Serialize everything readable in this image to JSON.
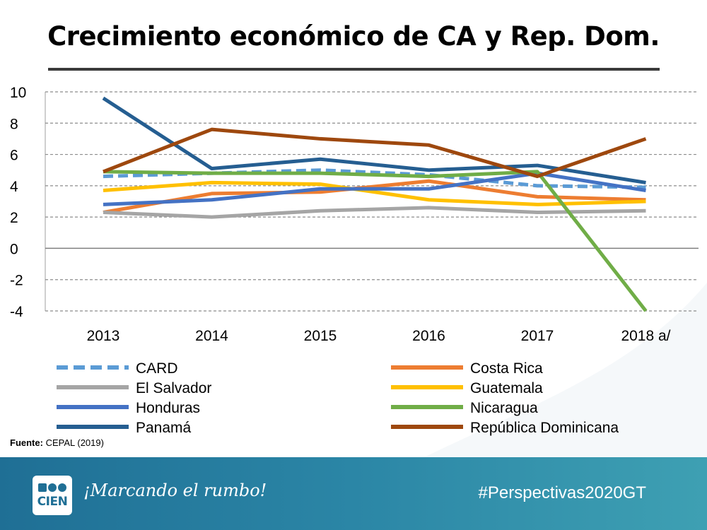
{
  "title": "Crecimiento económico de CA y Rep. Dom.",
  "source": {
    "label": "Fuente:",
    "text": "CEPAL (2019)"
  },
  "footer": {
    "logo_text": "CIEN",
    "slogan": "¡Marcando el rumbo!",
    "hashtag": "#Perspectivas2020GT"
  },
  "chart_data": {
    "type": "line",
    "title": "Crecimiento económico de CA y Rep. Dom.",
    "xlabel": "",
    "ylabel": "",
    "categories": [
      "2013",
      "2014",
      "2015",
      "2016",
      "2017",
      "2018 a/"
    ],
    "ylim": [
      -4,
      10
    ],
    "yticks": [
      "10",
      "8",
      "6",
      "4",
      "2",
      "0",
      "-2",
      "-4"
    ],
    "grid": true,
    "legend_position": "bottom",
    "series": [
      {
        "name": "CARD",
        "color": "#5b9bd5",
        "dashed": true,
        "values": [
          4.6,
          4.8,
          5.0,
          4.7,
          4.0,
          3.9
        ]
      },
      {
        "name": "Costa Rica",
        "color": "#ed7d31",
        "dashed": false,
        "values": [
          2.3,
          3.5,
          3.6,
          4.3,
          3.3,
          3.1
        ]
      },
      {
        "name": "El Salvador",
        "color": "#a5a5a5",
        "dashed": false,
        "values": [
          2.3,
          2.0,
          2.4,
          2.6,
          2.3,
          2.4
        ]
      },
      {
        "name": "Guatemala",
        "color": "#ffc000",
        "dashed": false,
        "values": [
          3.7,
          4.2,
          4.1,
          3.1,
          2.8,
          3.0
        ]
      },
      {
        "name": "Honduras",
        "color": "#4472c4",
        "dashed": false,
        "values": [
          2.8,
          3.1,
          3.8,
          3.8,
          4.8,
          3.7
        ]
      },
      {
        "name": "Nicaragua",
        "color": "#70ad47",
        "dashed": false,
        "values": [
          4.9,
          4.8,
          4.8,
          4.6,
          4.9,
          -4.0
        ]
      },
      {
        "name": "Panamá",
        "color": "#255e91",
        "dashed": false,
        "values": [
          9.6,
          5.1,
          5.7,
          5.0,
          5.3,
          4.2
        ]
      },
      {
        "name": "República Dominicana",
        "color": "#9e480e",
        "dashed": false,
        "values": [
          4.9,
          7.6,
          7.0,
          6.6,
          4.6,
          7.0
        ]
      }
    ]
  }
}
